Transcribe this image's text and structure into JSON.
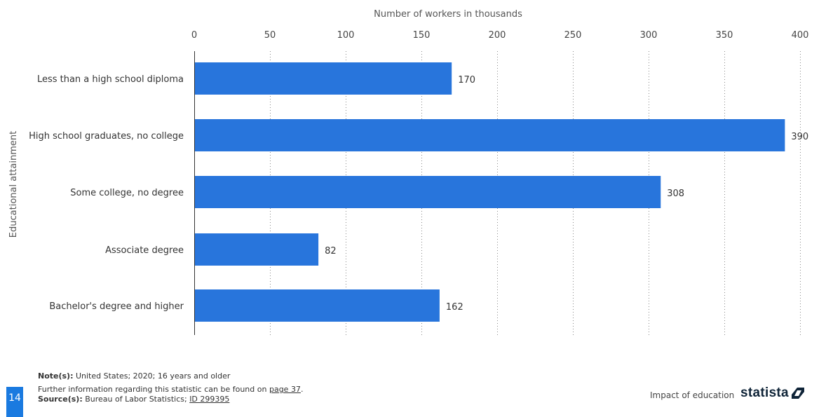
{
  "chart_data": {
    "type": "bar",
    "orientation": "horizontal",
    "categories": [
      "Less than a high school diploma",
      "High school graduates, no college",
      "Some college, no degree",
      "Associate degree",
      "Bachelor's degree and higher"
    ],
    "values": [
      170,
      390,
      308,
      82,
      162
    ],
    "value_labels": [
      "170",
      "390",
      "308",
      "82",
      "162"
    ],
    "xlabel": "Number of workers in thousands",
    "ylabel": "Educational attainment",
    "xlim": [
      0,
      400
    ],
    "ticks": [
      0,
      50,
      100,
      150,
      200,
      250,
      300,
      350,
      400
    ],
    "tick_labels": [
      "0",
      "50",
      "100",
      "150",
      "200",
      "250",
      "300",
      "350",
      "400"
    ],
    "grid": "vertical dotted",
    "bar_color": "#2875dc",
    "axis_position": "top"
  },
  "footer": {
    "note_label": "Note(s):",
    "note_text": " United States; 2020; 16 years and older",
    "further_text": "Further information regarding this statistic can be found on ",
    "further_link": "page 37",
    "further_end": ".",
    "source_label": "Source(s):",
    "source_text": " Bureau of Labor Statistics; ",
    "source_link": "ID 299395",
    "page_number": "14",
    "topic": "Impact of education",
    "logo_text": "statista",
    "accent_color": "#1a7ae0"
  }
}
